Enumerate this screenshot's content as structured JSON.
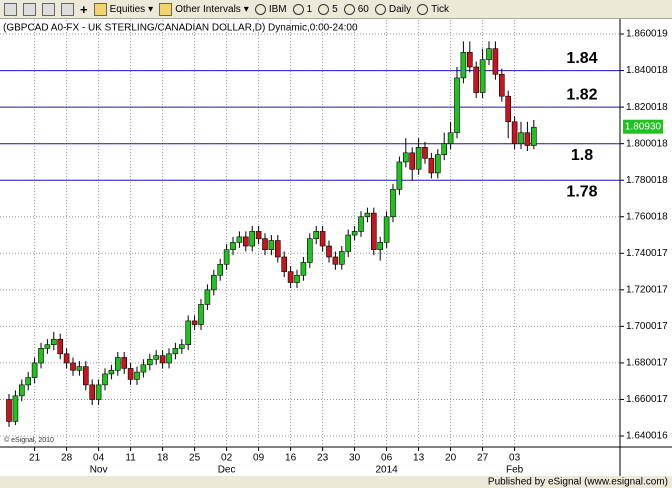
{
  "toolbar": {
    "items": [
      "Equities",
      "Other Intervals",
      "IBM",
      "1",
      "5",
      "60",
      "Daily",
      "Tick"
    ]
  },
  "chart_data": {
    "type": "candlestick",
    "title": "(GBPCAD A0-FX - UK STERLING/CANADIAN DOLLAR,D) Dynamic,0:00-24:00",
    "watermark": "© eSignal, 2010",
    "footer": "Published by eSignal (www.esignal.com)",
    "categories": [
      null,
      null,
      null,
      null,
      "21",
      null,
      null,
      null,
      null,
      "28",
      null,
      null,
      null,
      null,
      "04",
      null,
      null,
      null,
      null,
      "11",
      null,
      null,
      null,
      null,
      "18",
      null,
      null,
      null,
      null,
      "25",
      null,
      null,
      null,
      null,
      "02",
      null,
      null,
      null,
      null,
      "09",
      null,
      null,
      null,
      null,
      "16",
      null,
      null,
      null,
      null,
      "23",
      null,
      null,
      null,
      null,
      "30",
      null,
      null,
      null,
      null,
      "06",
      null,
      null,
      null,
      null,
      "13",
      null,
      null,
      null,
      null,
      "20",
      null,
      null,
      null,
      null,
      "27",
      null,
      null,
      null,
      null,
      "03",
      null,
      null,
      null
    ],
    "period_labels": [
      null,
      null,
      null,
      null,
      null,
      null,
      null,
      null,
      null,
      null,
      null,
      null,
      null,
      null,
      "Nov",
      null,
      null,
      null,
      null,
      null,
      null,
      null,
      null,
      null,
      null,
      null,
      null,
      null,
      null,
      null,
      null,
      null,
      null,
      null,
      "Dec",
      null,
      null,
      null,
      null,
      null,
      null,
      null,
      null,
      null,
      null,
      null,
      null,
      null,
      null,
      null,
      null,
      null,
      null,
      null,
      null,
      null,
      null,
      null,
      null,
      "2014",
      null,
      null,
      null,
      null,
      null,
      null,
      null,
      null,
      null,
      null,
      null,
      null,
      null,
      null,
      null,
      null,
      null,
      null,
      null,
      "Feb",
      null,
      null,
      null
    ],
    "open": [
      1.66,
      1.648,
      1.662,
      1.668,
      1.672,
      1.68,
      1.688,
      1.69,
      1.693,
      1.685,
      1.68,
      1.676,
      1.678,
      1.668,
      1.66,
      1.668,
      1.674,
      1.676,
      1.683,
      1.677,
      1.671,
      1.675,
      1.679,
      1.682,
      1.684,
      1.68,
      1.685,
      1.688,
      1.69,
      1.703,
      1.701,
      1.712,
      1.72,
      1.728,
      1.734,
      1.742,
      1.746,
      1.749,
      1.744,
      1.752,
      1.748,
      1.742,
      1.747,
      1.738,
      1.73,
      1.724,
      1.728,
      1.735,
      1.748,
      1.752,
      1.744,
      1.738,
      1.734,
      1.741,
      1.75,
      1.752,
      1.76,
      1.762,
      1.742,
      1.746,
      1.76,
      1.775,
      1.79,
      1.795,
      1.786,
      1.798,
      1.792,
      1.784,
      1.794,
      1.8,
      1.806,
      1.836,
      1.85,
      1.842,
      1.828,
      1.846,
      1.852,
      1.838,
      1.826,
      1.812,
      1.8,
      1.806,
      1.799
    ],
    "high": [
      1.663,
      1.665,
      1.671,
      1.675,
      1.683,
      1.691,
      1.693,
      1.697,
      1.696,
      1.688,
      1.683,
      1.681,
      1.681,
      1.671,
      1.671,
      1.677,
      1.679,
      1.686,
      1.686,
      1.68,
      1.678,
      1.682,
      1.685,
      1.687,
      1.687,
      1.688,
      1.691,
      1.693,
      1.706,
      1.706,
      1.715,
      1.723,
      1.731,
      1.737,
      1.745,
      1.749,
      1.752,
      1.752,
      1.755,
      1.755,
      1.751,
      1.75,
      1.75,
      1.741,
      1.733,
      1.731,
      1.738,
      1.751,
      1.755,
      1.755,
      1.747,
      1.741,
      1.744,
      1.753,
      1.755,
      1.763,
      1.765,
      1.765,
      1.749,
      1.763,
      1.778,
      1.793,
      1.803,
      1.798,
      1.803,
      1.801,
      1.795,
      1.797,
      1.806,
      1.812,
      1.842,
      1.856,
      1.856,
      1.845,
      1.852,
      1.856,
      1.856,
      1.841,
      1.829,
      1.815,
      1.812,
      1.812,
      1.813
    ],
    "low": [
      1.645,
      1.646,
      1.659,
      1.665,
      1.669,
      1.677,
      1.685,
      1.687,
      1.682,
      1.677,
      1.673,
      1.673,
      1.665,
      1.657,
      1.657,
      1.665,
      1.671,
      1.673,
      1.674,
      1.668,
      1.668,
      1.672,
      1.676,
      1.679,
      1.677,
      1.677,
      1.682,
      1.685,
      1.687,
      1.698,
      1.698,
      1.709,
      1.717,
      1.725,
      1.731,
      1.739,
      1.743,
      1.741,
      1.741,
      1.745,
      1.739,
      1.739,
      1.735,
      1.727,
      1.721,
      1.721,
      1.725,
      1.732,
      1.745,
      1.741,
      1.735,
      1.731,
      1.731,
      1.738,
      1.747,
      1.749,
      1.757,
      1.739,
      1.736,
      1.743,
      1.757,
      1.772,
      1.787,
      1.78,
      1.783,
      1.789,
      1.781,
      1.781,
      1.791,
      1.797,
      1.803,
      1.833,
      1.839,
      1.825,
      1.825,
      1.843,
      1.835,
      1.823,
      1.803,
      1.797,
      1.797,
      1.796,
      1.797
    ],
    "close": [
      1.648,
      1.662,
      1.668,
      1.672,
      1.68,
      1.688,
      1.69,
      1.693,
      1.685,
      1.68,
      1.676,
      1.678,
      1.668,
      1.66,
      1.668,
      1.674,
      1.676,
      1.683,
      1.677,
      1.671,
      1.675,
      1.679,
      1.682,
      1.684,
      1.68,
      1.685,
      1.688,
      1.69,
      1.703,
      1.701,
      1.712,
      1.72,
      1.728,
      1.734,
      1.742,
      1.746,
      1.749,
      1.744,
      1.752,
      1.748,
      1.742,
      1.747,
      1.738,
      1.73,
      1.724,
      1.728,
      1.735,
      1.748,
      1.752,
      1.744,
      1.738,
      1.734,
      1.741,
      1.75,
      1.752,
      1.76,
      1.762,
      1.742,
      1.746,
      1.76,
      1.775,
      1.79,
      1.795,
      1.786,
      1.798,
      1.792,
      1.784,
      1.794,
      1.8,
      1.806,
      1.836,
      1.85,
      1.842,
      1.828,
      1.846,
      1.852,
      1.838,
      1.826,
      1.812,
      1.8,
      1.806,
      1.799,
      1.809
    ],
    "up_color": "#1fc21f",
    "down_color": "#c8141e",
    "levels": [
      1.84,
      1.82,
      1.8,
      1.78
    ],
    "level_color": "#1c1ccc",
    "last_price": {
      "value": 1.8093,
      "label": "1.80930"
    },
    "ylim": [
      1.634,
      1.8677
    ],
    "yticks": [
      1.860019,
      1.840018,
      1.820018,
      1.800018,
      1.780018,
      1.760018,
      1.740017,
      1.720017,
      1.700017,
      1.680017,
      1.660017,
      1.640016
    ],
    "grid": true
  }
}
